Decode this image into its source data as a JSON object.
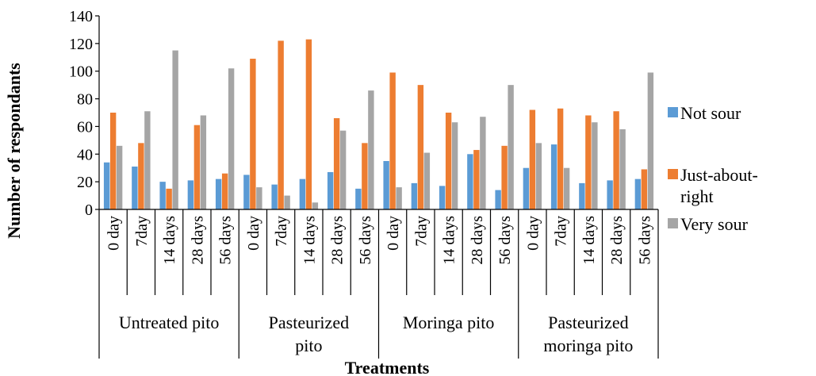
{
  "colors": {
    "not_sour": "#5B9BD5",
    "just_about_right": "#ED7D31",
    "very_sour": "#A5A5A5"
  },
  "chart_data": {
    "type": "bar",
    "title": "",
    "xlabel": "Treatments",
    "ylabel": "Number of respondants",
    "ylim": [
      0,
      140
    ],
    "yticks": [
      0,
      20,
      40,
      60,
      80,
      100,
      120,
      140
    ],
    "grid": false,
    "legend_position": "right",
    "groups": [
      {
        "name": "Untreated pito",
        "lines": [
          "Untreated pito"
        ]
      },
      {
        "name": "Pasteurized pito",
        "lines": [
          "Pasteurized",
          "pito"
        ]
      },
      {
        "name": "Moringa pito",
        "lines": [
          "Moringa pito"
        ]
      },
      {
        "name": "Pasteurized moringa pito",
        "lines": [
          "Pasteurized",
          "moringa pito"
        ]
      }
    ],
    "categories": [
      "0 day",
      "7day",
      "14 days",
      "28 days",
      "56 days",
      "0 day",
      "7day",
      "14 days",
      "28 days",
      "56 days",
      "0 day",
      "7day",
      "14 days",
      "28 days",
      "56 days",
      "0 day",
      "7day",
      "14 days",
      "28 days",
      "56 days"
    ],
    "series": [
      {
        "name": "Not sour",
        "color": "#5B9BD5",
        "values": [
          34,
          31,
          20,
          21,
          22,
          25,
          18,
          22,
          27,
          15,
          35,
          19,
          17,
          40,
          14,
          30,
          47,
          19,
          21,
          22
        ]
      },
      {
        "name": "Just-about-right",
        "legend_lines": [
          "Just-about-",
          "right"
        ],
        "color": "#ED7D31",
        "values": [
          70,
          48,
          15,
          61,
          26,
          109,
          122,
          123,
          66,
          48,
          99,
          90,
          70,
          43,
          46,
          72,
          73,
          68,
          71,
          29
        ]
      },
      {
        "name": "Very sour",
        "color": "#A5A5A5",
        "values": [
          46,
          71,
          115,
          68,
          102,
          16,
          10,
          5,
          57,
          86,
          16,
          41,
          63,
          67,
          90,
          48,
          30,
          63,
          58,
          99
        ]
      }
    ]
  }
}
